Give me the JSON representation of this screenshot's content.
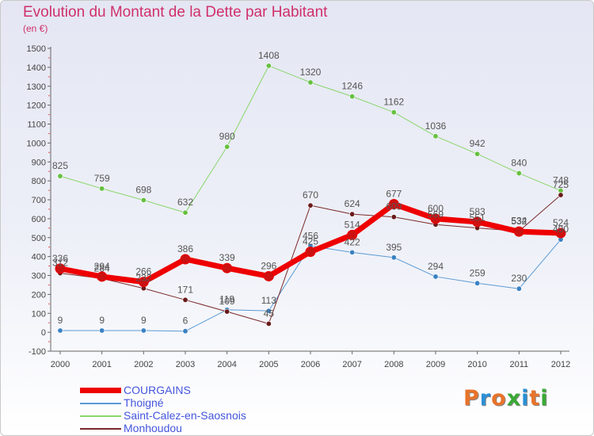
{
  "header": {
    "title": "Evolution du Montant de la Dette par Habitant",
    "unit": "(en €)"
  },
  "logo": {
    "text": "Proxiti",
    "letters": [
      "P",
      "r",
      "o",
      "x",
      "i",
      "t",
      "i"
    ],
    "colors": [
      "#e8732a",
      "#2a8fd6",
      "#e8732a",
      "#39a935",
      "#2a8fd6",
      "#e8732a",
      "#39a935"
    ]
  },
  "chart_data": {
    "type": "line",
    "title": "Evolution du Montant de la Dette par Habitant",
    "subtitle": "(en €)",
    "xlabel": "",
    "ylabel": "",
    "ylim": [
      -100,
      1500
    ],
    "yticks": [
      -100,
      0,
      100,
      200,
      300,
      400,
      500,
      600,
      700,
      800,
      900,
      1000,
      1100,
      1200,
      1300,
      1400,
      1500
    ],
    "grid": false,
    "legend_position": "bottom-left",
    "x": [
      "2000",
      "2001",
      "2002",
      "2003",
      "2004",
      "2005",
      "2006",
      "2007",
      "2008",
      "2009",
      "2010",
      "2011",
      "2012"
    ],
    "series": [
      {
        "name": "COURGAINS",
        "color": "#ee0000",
        "marker": "#cc1111",
        "width": 7,
        "values": [
          336,
          294,
          266,
          386,
          339,
          296,
          425,
          514,
          677,
          600,
          583,
          532,
          524
        ],
        "labels": [
          "336",
          "294",
          "266",
          "386",
          "339",
          "296",
          "425",
          "514",
          "677",
          "600",
          "583",
          "532",
          "524"
        ]
      },
      {
        "name": "Thoigné",
        "color": "#5b9bd5",
        "marker": "#3a82c4",
        "width": 1,
        "values": [
          9,
          9,
          9,
          6,
          119,
          113,
          456,
          422,
          395,
          294,
          259,
          230,
          490
        ],
        "labels": [
          "9",
          "9",
          "9",
          "6",
          "119",
          "113",
          "456",
          "422",
          "395",
          "294",
          "259",
          "230",
          "490"
        ]
      },
      {
        "name": "Saint-Calez-en-Saosnois",
        "color": "#88d66a",
        "marker": "#66c040",
        "width": 1,
        "values": [
          825,
          759,
          698,
          632,
          980,
          1408,
          1320,
          1246,
          1162,
          1036,
          942,
          840,
          748
        ],
        "labels": [
          "825",
          "759",
          "698",
          "632",
          "980",
          "1408",
          "1320",
          "1246",
          "1162",
          "1036",
          "942",
          "840",
          "748"
        ]
      },
      {
        "name": "Monhoudou",
        "color": "#7a2a2a",
        "marker": "#6a1a1a",
        "width": 1,
        "values": [
          312,
          284,
          232,
          171,
          109,
          45,
          670,
          624,
          609,
          569,
          551,
          534,
          725
        ],
        "labels": [
          "312",
          "284",
          "232",
          "171",
          "109",
          "45",
          "670",
          "624",
          "609",
          "569",
          "551",
          "534",
          "725"
        ]
      }
    ]
  }
}
